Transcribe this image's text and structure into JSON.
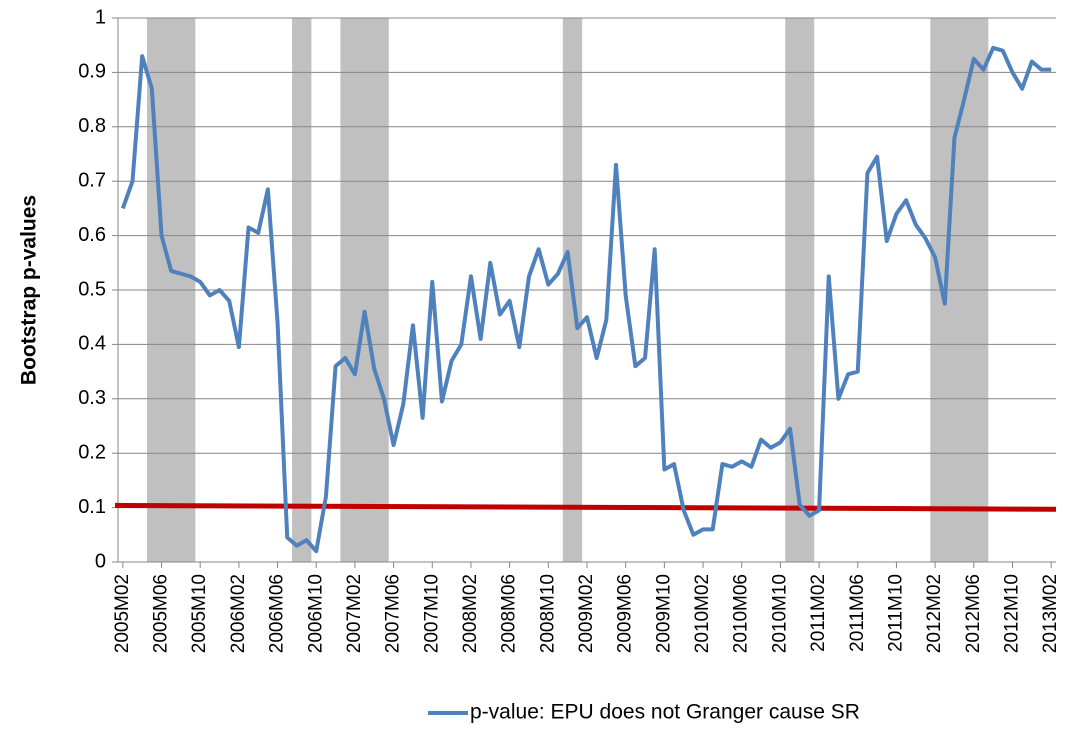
{
  "chart_data": {
    "type": "line",
    "y_label": "Bootstrap p-values",
    "categories": [
      "2005M02",
      null,
      null,
      null,
      "2005M06",
      null,
      null,
      null,
      "2005M10",
      null,
      null,
      null,
      "2006M02",
      null,
      null,
      null,
      "2006M06",
      null,
      null,
      null,
      "2006M10",
      null,
      null,
      null,
      "2007M02",
      null,
      null,
      null,
      "2007M06",
      null,
      null,
      null,
      "2007M10",
      null,
      null,
      null,
      "2008M02",
      null,
      null,
      null,
      "2008M06",
      null,
      null,
      null,
      "2008M10",
      null,
      null,
      null,
      "2009M02",
      null,
      null,
      null,
      "2009M06",
      null,
      null,
      null,
      "2009M10",
      null,
      null,
      null,
      "2010M02",
      null,
      null,
      null,
      "2010M06",
      null,
      null,
      null,
      "2010M10",
      null,
      null,
      null,
      "2011M02",
      null,
      null,
      null,
      "2011M06",
      null,
      null,
      null,
      "2011M10",
      null,
      null,
      null,
      "2012M02",
      null,
      null,
      null,
      "2012M06",
      null,
      null,
      null,
      "2012M10",
      null,
      null,
      null,
      "2013M02"
    ],
    "series": [
      {
        "name": "p-value: EPU does not Granger cause SR",
        "color": "#4f81bd",
        "values": [
          0.65,
          0.7,
          0.93,
          0.87,
          0.6,
          0.535,
          0.53,
          0.525,
          0.515,
          0.49,
          0.5,
          0.48,
          0.395,
          0.615,
          0.605,
          0.685,
          0.44,
          0.045,
          0.03,
          0.04,
          0.02,
          0.12,
          0.36,
          0.375,
          0.345,
          0.46,
          0.355,
          0.3,
          0.215,
          0.29,
          0.435,
          0.265,
          0.515,
          0.295,
          0.37,
          0.4,
          0.525,
          0.41,
          0.55,
          0.455,
          0.48,
          0.395,
          0.525,
          0.575,
          0.51,
          0.53,
          0.57,
          0.43,
          0.45,
          0.375,
          0.445,
          0.73,
          0.49,
          0.36,
          0.375,
          0.575,
          0.17,
          0.18,
          0.095,
          0.05,
          0.06,
          0.06,
          0.18,
          0.175,
          0.185,
          0.175,
          0.225,
          0.21,
          0.22,
          0.245,
          0.105,
          0.085,
          0.095,
          0.525,
          0.3,
          0.345,
          0.35,
          0.715,
          0.745,
          0.59,
          0.64,
          0.665,
          0.62,
          0.595,
          0.56,
          0.475,
          0.78,
          0.85,
          0.925,
          0.905,
          0.945,
          0.94,
          0.9,
          0.87,
          0.92,
          0.905,
          0.905
        ]
      }
    ],
    "shaded_periods": [
      [
        3,
        7
      ],
      [
        18,
        19
      ],
      [
        23,
        27
      ],
      [
        46,
        47
      ],
      [
        69,
        71
      ],
      [
        84,
        89
      ]
    ],
    "shade_color": "#c0c0c0",
    "reference_line": {
      "start": 0.104,
      "end": 0.097,
      "color": "#c00000"
    },
    "ylim": [
      0,
      1
    ],
    "yticks": [
      0,
      0.1,
      0.2,
      0.3,
      0.4,
      0.5,
      0.6,
      0.7,
      0.8,
      0.9,
      1
    ],
    "grid": true,
    "legend": "bottom"
  }
}
